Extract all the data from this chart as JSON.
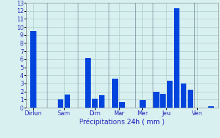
{
  "bars": [
    {
      "x": 1,
      "height": 9.5
    },
    {
      "x": 5,
      "height": 1.0
    },
    {
      "x": 6,
      "height": 1.6
    },
    {
      "x": 9,
      "height": 6.2
    },
    {
      "x": 10,
      "height": 1.1
    },
    {
      "x": 11,
      "height": 1.5
    },
    {
      "x": 13,
      "height": 3.6
    },
    {
      "x": 14,
      "height": 0.7
    },
    {
      "x": 17,
      "height": 0.9
    },
    {
      "x": 19,
      "height": 2.0
    },
    {
      "x": 20,
      "height": 1.7
    },
    {
      "x": 21,
      "height": 3.3
    },
    {
      "x": 22,
      "height": 12.3
    },
    {
      "x": 23,
      "height": 3.0
    },
    {
      "x": 24,
      "height": 2.2
    },
    {
      "x": 27,
      "height": 0.2
    }
  ],
  "bar_width": 0.85,
  "bar_color": "#0044dd",
  "xlabel": "Précipitations 24h ( mm )",
  "ylim": [
    0,
    13
  ],
  "xlim": [
    0,
    28
  ],
  "yticks": [
    0,
    1,
    2,
    3,
    4,
    5,
    6,
    7,
    8,
    9,
    10,
    11,
    12,
    13
  ],
  "xtick_labels": [
    "Dirlun",
    "Sam",
    "Dim",
    "Mar",
    "Mer",
    "Jeu",
    "Ven"
  ],
  "xtick_positions": [
    1,
    5.5,
    10,
    13.5,
    17,
    20.5,
    25
  ],
  "sep_positions": [
    3,
    7.5,
    12,
    16,
    18.5,
    24.5
  ],
  "bg_color": "#d8f0f0",
  "grid_color": "#aacccc",
  "label_color": "#2222bb",
  "tick_color": "#2222bb"
}
